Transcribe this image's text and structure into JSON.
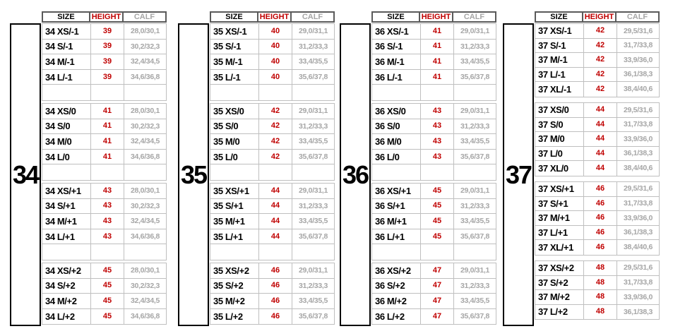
{
  "header": {
    "size": "SIZE",
    "height": "HEIGHT",
    "calf": "CALF"
  },
  "colors": {
    "height_red": "#C00000",
    "calf_gray": "#A6A6A6",
    "grid_gray": "#BFBFBF"
  },
  "groups": [
    {
      "label": "34",
      "sections": [
        {
          "rows": [
            {
              "size": "34 XS/-1",
              "height": "39",
              "calf": "28,0/30,1"
            },
            {
              "size": "34 S/-1",
              "height": "39",
              "calf": "30,2/32,3"
            },
            {
              "size": "34 M/-1",
              "height": "39",
              "calf": "32,4/34,5"
            },
            {
              "size": "34 L/-1",
              "height": "39",
              "calf": "34,6/36,8"
            }
          ]
        },
        {
          "rows": [
            {
              "size": "34 XS/0",
              "height": "41",
              "calf": "28,0/30,1"
            },
            {
              "size": "34 S/0",
              "height": "41",
              "calf": "30,2/32,3"
            },
            {
              "size": "34 M/0",
              "height": "41",
              "calf": "32,4/34,5"
            },
            {
              "size": "34 L/0",
              "height": "41",
              "calf": "34,6/36,8"
            }
          ]
        },
        {
          "rows": [
            {
              "size": "34 XS/+1",
              "height": "43",
              "calf": "28,0/30,1"
            },
            {
              "size": "34 S/+1",
              "height": "43",
              "calf": "30,2/32,3"
            },
            {
              "size": "34 M/+1",
              "height": "43",
              "calf": "32,4/34,5"
            },
            {
              "size": "34 L/+1",
              "height": "43",
              "calf": "34,6/36,8"
            }
          ]
        },
        {
          "rows": [
            {
              "size": "34 XS/+2",
              "height": "45",
              "calf": "28,0/30,1"
            },
            {
              "size": "34 S/+2",
              "height": "45",
              "calf": "30,2/32,3"
            },
            {
              "size": "34 M/+2",
              "height": "45",
              "calf": "32,4/34,5"
            },
            {
              "size": "34 L/+2",
              "height": "45",
              "calf": "34,6/36,8"
            }
          ]
        }
      ]
    },
    {
      "label": "35",
      "sections": [
        {
          "rows": [
            {
              "size": "35 XS/-1",
              "height": "40",
              "calf": "29,0/31,1"
            },
            {
              "size": "35 S/-1",
              "height": "40",
              "calf": "31,2/33,3"
            },
            {
              "size": "35 M/-1",
              "height": "40",
              "calf": "33,4/35,5"
            },
            {
              "size": "35 L/-1",
              "height": "40",
              "calf": "35,6/37,8"
            }
          ]
        },
        {
          "rows": [
            {
              "size": "35 XS/0",
              "height": "42",
              "calf": "29,0/31,1"
            },
            {
              "size": "35 S/0",
              "height": "42",
              "calf": "31,2/33,3"
            },
            {
              "size": "35 M/0",
              "height": "42",
              "calf": "33,4/35,5"
            },
            {
              "size": "35 L/0",
              "height": "42",
              "calf": "35,6/37,8"
            }
          ]
        },
        {
          "rows": [
            {
              "size": "35 XS/+1",
              "height": "44",
              "calf": "29,0/31,1"
            },
            {
              "size": "35 S/+1",
              "height": "44",
              "calf": "31,2/33,3"
            },
            {
              "size": "35 M/+1",
              "height": "44",
              "calf": "33,4/35,5"
            },
            {
              "size": "35 L/+1",
              "height": "44",
              "calf": "35,6/37,8"
            }
          ]
        },
        {
          "rows": [
            {
              "size": "35 XS/+2",
              "height": "46",
              "calf": "29,0/31,1"
            },
            {
              "size": "35 S/+2",
              "height": "46",
              "calf": "31,2/33,3"
            },
            {
              "size": "35 M/+2",
              "height": "46",
              "calf": "33,4/35,5"
            },
            {
              "size": "35 L/+2",
              "height": "46",
              "calf": "35,6/37,8"
            }
          ]
        }
      ]
    },
    {
      "label": "36",
      "sections": [
        {
          "rows": [
            {
              "size": "36 XS/-1",
              "height": "41",
              "calf": "29,0/31,1"
            },
            {
              "size": "36 S/-1",
              "height": "41",
              "calf": "31,2/33,3"
            },
            {
              "size": "36 M/-1",
              "height": "41",
              "calf": "33,4/35,5"
            },
            {
              "size": "36 L/-1",
              "height": "41",
              "calf": "35,6/37,8"
            }
          ]
        },
        {
          "rows": [
            {
              "size": "36 XS/0",
              "height": "43",
              "calf": "29,0/31,1"
            },
            {
              "size": "36 S/0",
              "height": "43",
              "calf": "31,2/33,3"
            },
            {
              "size": "36 M/0",
              "height": "43",
              "calf": "33,4/35,5"
            },
            {
              "size": "36 L/0",
              "height": "43",
              "calf": "35,6/37,8"
            }
          ]
        },
        {
          "rows": [
            {
              "size": "36 XS/+1",
              "height": "45",
              "calf": "29,0/31,1"
            },
            {
              "size": "36 S/+1",
              "height": "45",
              "calf": "31,2/33,3"
            },
            {
              "size": "36 M/+1",
              "height": "45",
              "calf": "33,4/35,5"
            },
            {
              "size": "36 L/+1",
              "height": "45",
              "calf": "35,6/37,8"
            }
          ]
        },
        {
          "rows": [
            {
              "size": "36 XS/+2",
              "height": "47",
              "calf": "29,0/31,1"
            },
            {
              "size": "36 S/+2",
              "height": "47",
              "calf": "31,2/33,3"
            },
            {
              "size": "36 M/+2",
              "height": "47",
              "calf": "33,4/35,5"
            },
            {
              "size": "36 L/+2",
              "height": "47",
              "calf": "35,6/37,8"
            }
          ]
        }
      ]
    },
    {
      "label": "37",
      "sections": [
        {
          "rows": [
            {
              "size": "37 XS/-1",
              "height": "42",
              "calf": "29,5/31,6"
            },
            {
              "size": "37 S/-1",
              "height": "42",
              "calf": "31,7/33,8"
            },
            {
              "size": "37 M/-1",
              "height": "42",
              "calf": "33,9/36,0"
            },
            {
              "size": "37 L/-1",
              "height": "42",
              "calf": "36,1/38,3"
            },
            {
              "size": "37 XL/-1",
              "height": "42",
              "calf": "38,4/40,6"
            }
          ]
        },
        {
          "rows": [
            {
              "size": "37 XS/0",
              "height": "44",
              "calf": "29,5/31,6"
            },
            {
              "size": "37 S/0",
              "height": "44",
              "calf": "31,7/33,8"
            },
            {
              "size": "37 M/0",
              "height": "44",
              "calf": "33,9/36,0"
            },
            {
              "size": "37 L/0",
              "height": "44",
              "calf": "36,1/38,3"
            },
            {
              "size": "37 XL/0",
              "height": "44",
              "calf": "38,4/40,6"
            }
          ]
        },
        {
          "rows": [
            {
              "size": "37 XS/+1",
              "height": "46",
              "calf": "29,5/31,6"
            },
            {
              "size": "37 S/+1",
              "height": "46",
              "calf": "31,7/33,8"
            },
            {
              "size": "37 M/+1",
              "height": "46",
              "calf": "33,9/36,0"
            },
            {
              "size": "37 L/+1",
              "height": "46",
              "calf": "36,1/38,3"
            },
            {
              "size": "37 XL/+1",
              "height": "46",
              "calf": "38,4/40,6"
            }
          ]
        },
        {
          "rows": [
            {
              "size": "37 XS/+2",
              "height": "48",
              "calf": "29,5/31,6"
            },
            {
              "size": "37 S/+2",
              "height": "48",
              "calf": "31,7/33,8"
            },
            {
              "size": "37 M/+2",
              "height": "48",
              "calf": "33,9/36,0"
            },
            {
              "size": "37 L/+2",
              "height": "48",
              "calf": "36,1/38,3"
            }
          ]
        }
      ]
    }
  ]
}
